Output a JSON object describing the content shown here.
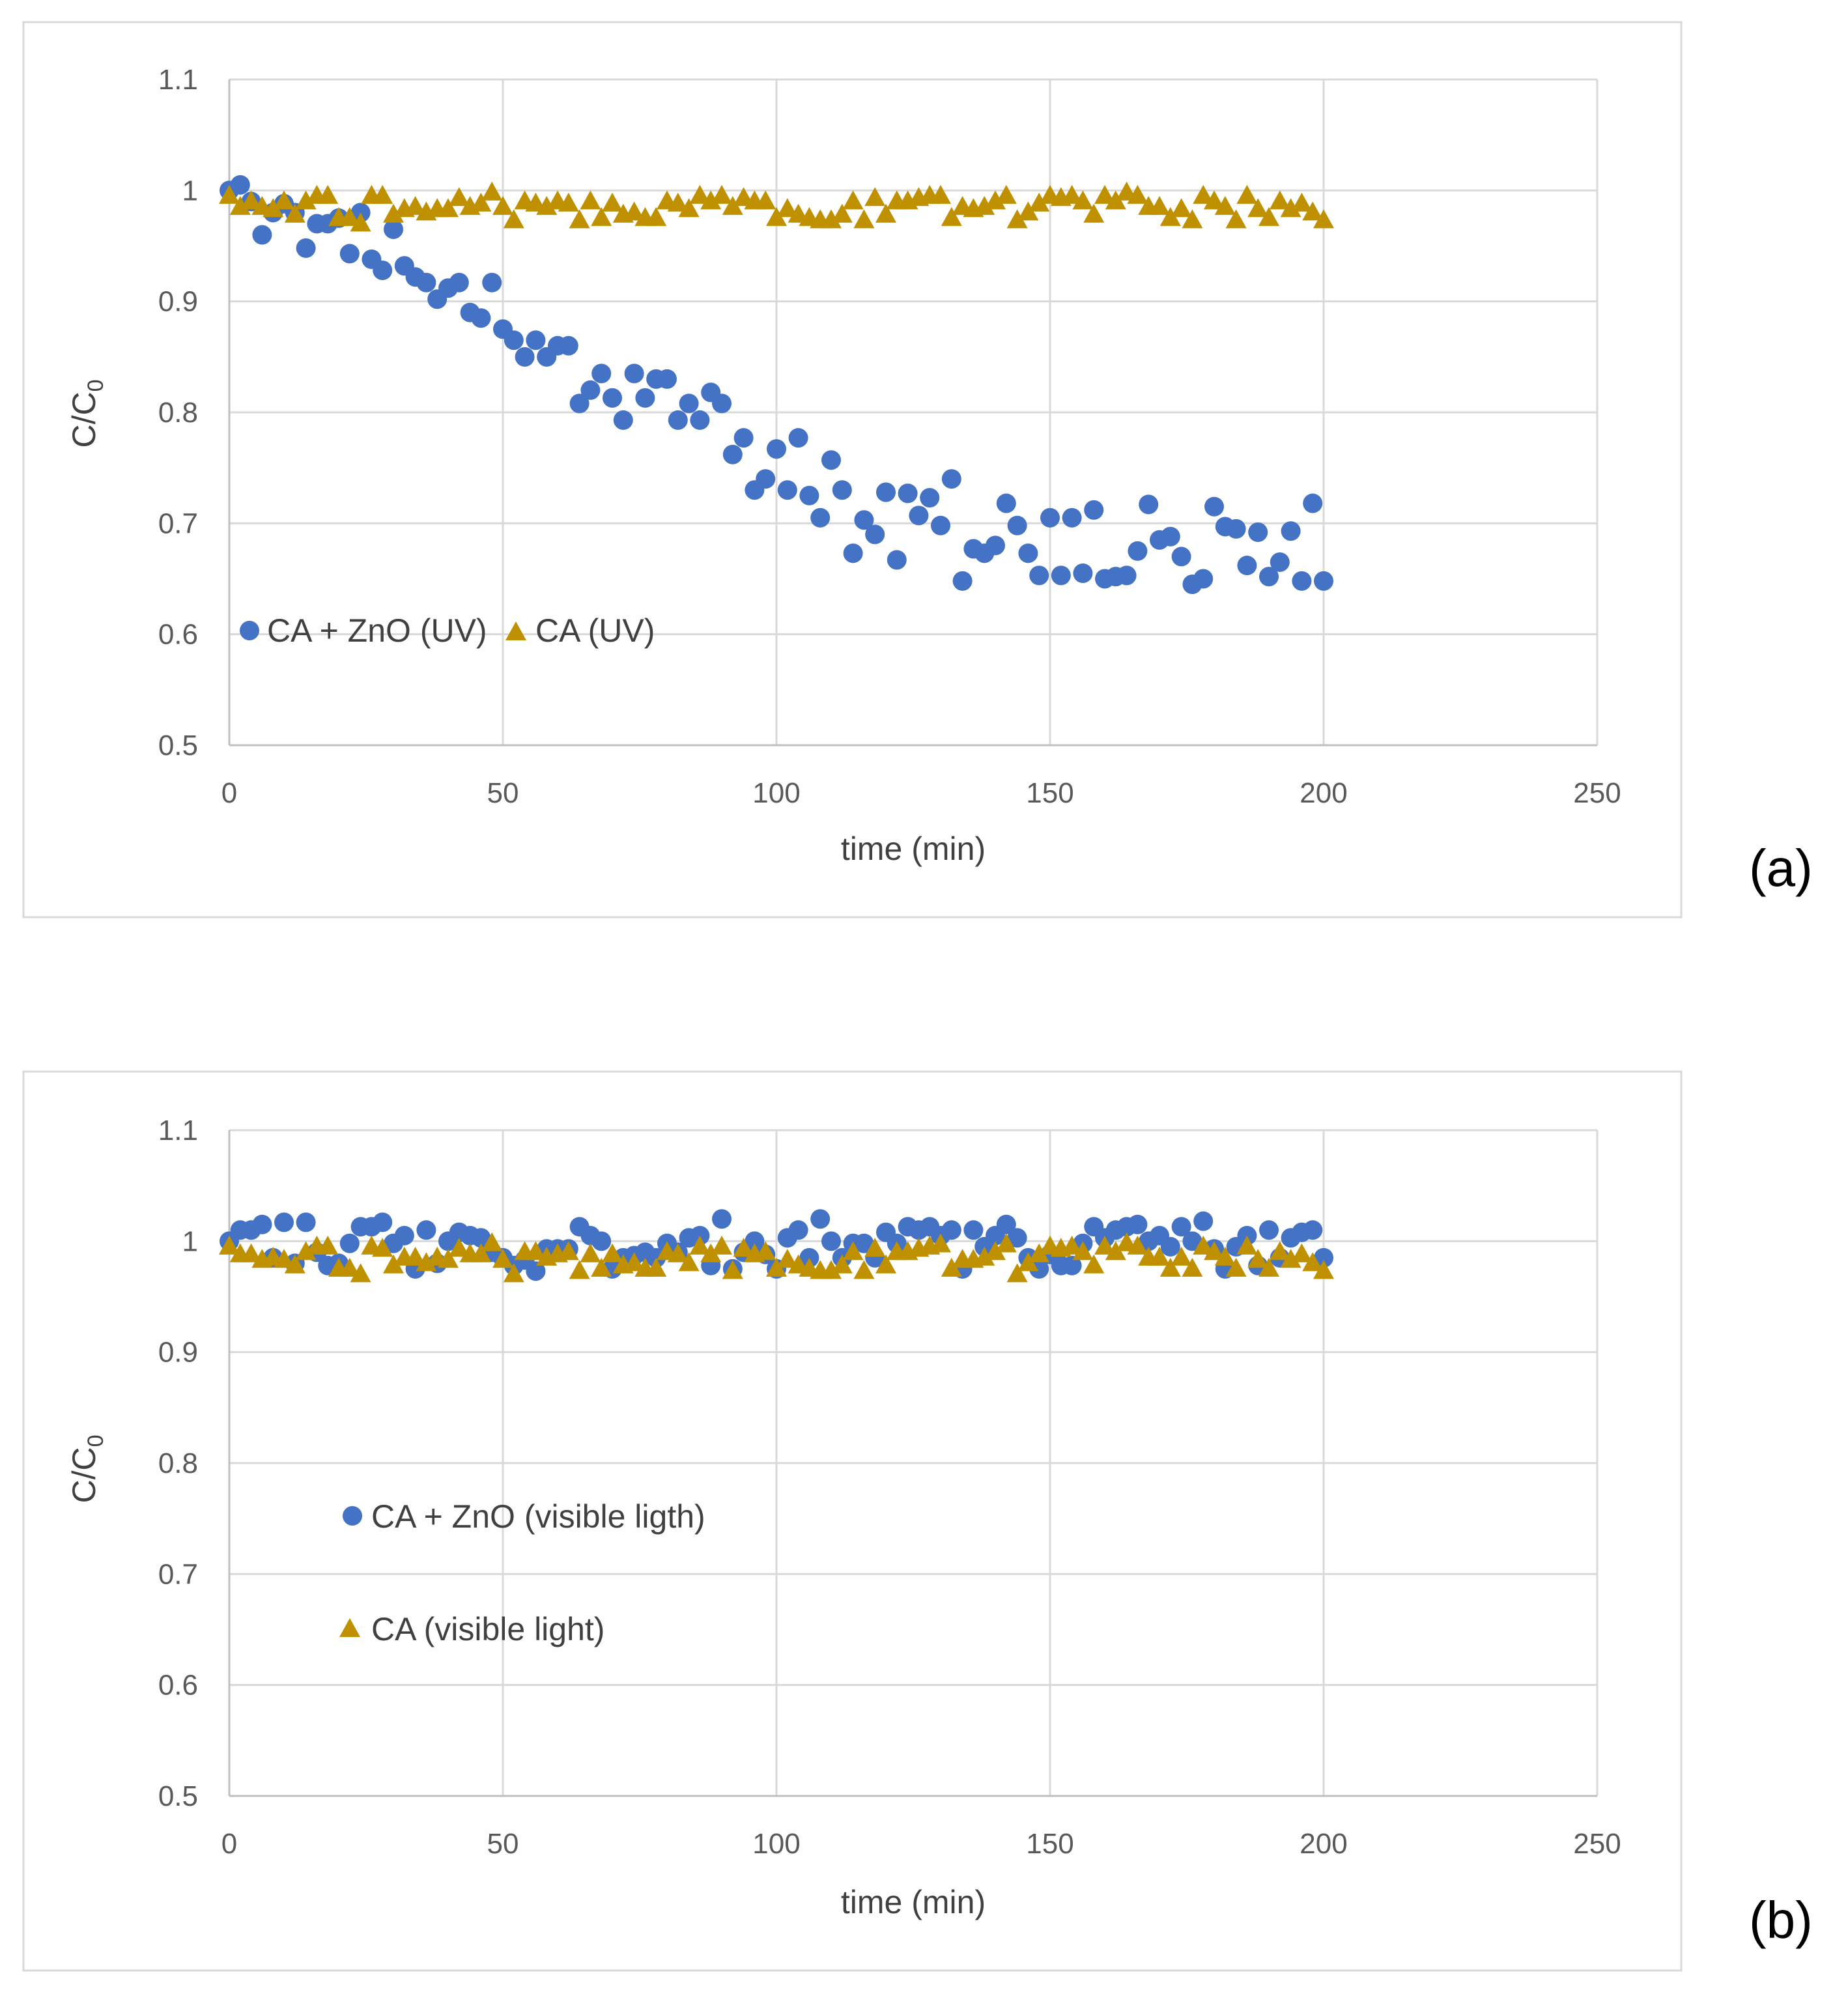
{
  "chart_data": [
    {
      "type": "scatter",
      "panel_label": "(a)",
      "xlabel": "time (min)",
      "ylabel": "C/C",
      "ylabel_sub": "0",
      "xlim": [
        0,
        250
      ],
      "ylim": [
        0.5,
        1.1
      ],
      "xticks": [
        0,
        50,
        100,
        150,
        200,
        250
      ],
      "yticks": [
        0.5,
        0.6,
        0.7,
        0.8,
        0.9,
        1,
        1.1
      ],
      "grid": true,
      "legend_position": "left, inline",
      "series": [
        {
          "name": "CA + ZnO (UV)",
          "marker": "circle",
          "color": "#4472c4",
          "x": [
            0,
            2,
            4,
            6,
            8,
            10,
            12,
            14,
            16,
            18,
            20,
            22,
            24,
            26,
            28,
            30,
            32,
            34,
            36,
            38,
            40,
            42,
            44,
            46,
            48,
            50,
            52,
            54,
            56,
            58,
            60,
            62,
            64,
            66,
            68,
            70,
            72,
            74,
            76,
            78,
            80,
            82,
            84,
            86,
            88,
            90,
            92,
            94,
            96,
            98,
            100,
            102,
            104,
            106,
            108,
            110,
            112,
            114,
            116,
            118,
            120,
            122,
            124,
            126,
            128,
            130,
            132,
            134,
            136,
            138,
            140,
            142,
            144,
            146,
            148,
            150,
            152,
            154,
            156,
            158,
            160,
            162,
            164,
            166,
            168,
            170,
            172,
            174,
            176,
            178,
            180,
            182,
            184,
            186,
            188,
            190,
            192,
            194,
            196,
            198,
            200
          ],
          "y": [
            1.0,
            1.005,
            0.99,
            0.96,
            0.98,
            0.988,
            0.98,
            0.948,
            0.97,
            0.97,
            0.975,
            0.943,
            0.98,
            0.938,
            0.928,
            0.965,
            0.932,
            0.922,
            0.917,
            0.902,
            0.912,
            0.917,
            0.89,
            0.885,
            0.917,
            0.875,
            0.865,
            0.85,
            0.865,
            0.85,
            0.86,
            0.86,
            0.808,
            0.82,
            0.835,
            0.813,
            0.793,
            0.835,
            0.813,
            0.83,
            0.83,
            0.793,
            0.808,
            0.793,
            0.818,
            0.808,
            0.762,
            0.777,
            0.73,
            0.74,
            0.767,
            0.73,
            0.777,
            0.725,
            0.705,
            0.757,
            0.73,
            0.673,
            0.703,
            0.69,
            0.728,
            0.667,
            0.727,
            0.707,
            0.723,
            0.698,
            0.74,
            0.648,
            0.677,
            0.673,
            0.68,
            0.718,
            0.698,
            0.673,
            0.653,
            0.705,
            0.653,
            0.705,
            0.655,
            0.712,
            0.65,
            0.652,
            0.653,
            0.675,
            0.717,
            0.685,
            0.688,
            0.67,
            0.645,
            0.65,
            0.715,
            0.697,
            0.695,
            0.662,
            0.692,
            0.652,
            0.665,
            0.693,
            0.648,
            0.718,
            0.648
          ]
        },
        {
          "name": "CA (UV)",
          "marker": "triangle",
          "color": "#bf9000",
          "x": [
            0,
            2,
            4,
            6,
            8,
            10,
            12,
            14,
            16,
            18,
            20,
            22,
            24,
            26,
            28,
            30,
            32,
            34,
            36,
            38,
            40,
            42,
            44,
            46,
            48,
            50,
            52,
            54,
            56,
            58,
            60,
            62,
            64,
            66,
            68,
            70,
            72,
            74,
            76,
            78,
            80,
            82,
            84,
            86,
            88,
            90,
            92,
            94,
            96,
            98,
            100,
            102,
            104,
            106,
            108,
            110,
            112,
            114,
            116,
            118,
            120,
            122,
            124,
            126,
            128,
            130,
            132,
            134,
            136,
            138,
            140,
            142,
            144,
            146,
            148,
            150,
            152,
            154,
            156,
            158,
            160,
            162,
            164,
            166,
            168,
            170,
            172,
            174,
            176,
            178,
            180,
            182,
            184,
            186,
            188,
            190,
            192,
            194,
            196,
            198,
            200
          ],
          "y": [
            0.995,
            0.985,
            0.99,
            0.985,
            0.983,
            0.99,
            0.978,
            0.99,
            0.995,
            0.995,
            0.975,
            0.975,
            0.97,
            0.995,
            0.995,
            0.978,
            0.983,
            0.985,
            0.98,
            0.983,
            0.983,
            0.993,
            0.985,
            0.988,
            0.998,
            0.985,
            0.973,
            0.99,
            0.988,
            0.985,
            0.99,
            0.988,
            0.973,
            0.99,
            0.975,
            0.988,
            0.978,
            0.98,
            0.975,
            0.975,
            0.99,
            0.988,
            0.983,
            0.995,
            0.99,
            0.995,
            0.985,
            0.993,
            0.99,
            0.99,
            0.975,
            0.983,
            0.978,
            0.975,
            0.973,
            0.973,
            0.978,
            0.99,
            0.973,
            0.993,
            0.978,
            0.99,
            0.99,
            0.993,
            0.995,
            0.995,
            0.975,
            0.985,
            0.983,
            0.985,
            0.99,
            0.995,
            0.973,
            0.98,
            0.988,
            0.995,
            0.993,
            0.995,
            0.99,
            0.978,
            0.995,
            0.99,
            0.998,
            0.995,
            0.985,
            0.985,
            0.975,
            0.983,
            0.973,
            0.995,
            0.99,
            0.985,
            0.973,
            0.995,
            0.983,
            0.975,
            0.99,
            0.983,
            0.988,
            0.98,
            0.973
          ]
        }
      ]
    },
    {
      "type": "scatter",
      "panel_label": "(b)",
      "xlabel": "time (min)",
      "ylabel": "C/C",
      "ylabel_sub": "0",
      "xlim": [
        0,
        250
      ],
      "ylim": [
        0.5,
        1.1
      ],
      "xticks": [
        0,
        50,
        100,
        150,
        200,
        250
      ],
      "yticks": [
        0.5,
        0.6,
        0.7,
        0.8,
        0.9,
        1,
        1.1
      ],
      "grid": true,
      "legend_position": "left, stacked",
      "series": [
        {
          "name": "CA + ZnO (visible ligth)",
          "marker": "circle",
          "color": "#4472c4",
          "x": [
            0,
            2,
            4,
            6,
            8,
            10,
            12,
            14,
            16,
            18,
            20,
            22,
            24,
            26,
            28,
            30,
            32,
            34,
            36,
            38,
            40,
            42,
            44,
            46,
            48,
            50,
            52,
            54,
            56,
            58,
            60,
            62,
            64,
            66,
            68,
            70,
            72,
            74,
            76,
            78,
            80,
            82,
            84,
            86,
            88,
            90,
            92,
            94,
            96,
            98,
            100,
            102,
            104,
            106,
            108,
            110,
            112,
            114,
            116,
            118,
            120,
            122,
            124,
            126,
            128,
            130,
            132,
            134,
            136,
            138,
            140,
            142,
            144,
            146,
            148,
            150,
            152,
            154,
            156,
            158,
            160,
            162,
            164,
            166,
            168,
            170,
            172,
            174,
            176,
            178,
            180,
            182,
            184,
            186,
            188,
            190,
            192,
            194,
            196,
            198,
            200
          ],
          "y": [
            1.0,
            1.01,
            1.01,
            1.015,
            0.985,
            1.017,
            0.98,
            1.017,
            0.99,
            0.978,
            0.98,
            0.998,
            1.013,
            1.013,
            1.017,
            0.998,
            1.005,
            0.975,
            1.01,
            0.98,
            1.0,
            1.008,
            1.005,
            1.003,
            0.99,
            0.985,
            0.978,
            0.983,
            0.973,
            0.993,
            0.993,
            0.993,
            1.013,
            1.005,
            1.0,
            0.975,
            0.985,
            0.987,
            0.99,
            0.985,
            0.998,
            0.99,
            1.003,
            1.005,
            0.978,
            1.02,
            0.975,
            0.99,
            1.0,
            0.988,
            0.975,
            1.003,
            1.01,
            0.985,
            1.02,
            1.0,
            0.985,
            0.998,
            0.998,
            0.985,
            1.008,
            0.998,
            1.013,
            1.01,
            1.013,
            1.005,
            1.01,
            0.975,
            1.01,
            0.995,
            1.005,
            1.015,
            1.003,
            0.985,
            0.975,
            0.988,
            0.978,
            0.978,
            0.998,
            1.013,
            1.003,
            1.01,
            1.013,
            1.015,
            1.0,
            1.005,
            0.995,
            1.013,
            1.0,
            1.018,
            0.993,
            0.975,
            0.995,
            1.005,
            0.978,
            1.01,
            0.985,
            1.003,
            1.008,
            1.01,
            0.985
          ]
        },
        {
          "name": "CA (visible light)",
          "marker": "triangle",
          "color": "#bf9000",
          "x": [
            0,
            2,
            4,
            6,
            8,
            10,
            12,
            14,
            16,
            18,
            20,
            22,
            24,
            26,
            28,
            30,
            32,
            34,
            36,
            38,
            40,
            42,
            44,
            46,
            48,
            50,
            52,
            54,
            56,
            58,
            60,
            62,
            64,
            66,
            68,
            70,
            72,
            74,
            76,
            78,
            80,
            82,
            84,
            86,
            88,
            90,
            92,
            94,
            96,
            98,
            100,
            102,
            104,
            106,
            108,
            110,
            112,
            114,
            116,
            118,
            120,
            122,
            124,
            126,
            128,
            130,
            132,
            134,
            136,
            138,
            140,
            142,
            144,
            146,
            148,
            150,
            152,
            154,
            156,
            158,
            160,
            162,
            164,
            166,
            168,
            170,
            172,
            174,
            176,
            178,
            180,
            182,
            184,
            186,
            188,
            190,
            192,
            194,
            196,
            198,
            200
          ],
          "y": [
            0.995,
            0.988,
            0.988,
            0.983,
            0.985,
            0.983,
            0.978,
            0.99,
            0.995,
            0.995,
            0.975,
            0.975,
            0.97,
            0.995,
            0.993,
            0.978,
            0.985,
            0.985,
            0.98,
            0.985,
            0.983,
            0.993,
            0.988,
            0.988,
            0.998,
            0.983,
            0.97,
            0.99,
            0.99,
            0.985,
            0.988,
            0.99,
            0.973,
            0.988,
            0.975,
            0.988,
            0.978,
            0.98,
            0.975,
            0.975,
            0.99,
            0.988,
            0.98,
            0.995,
            0.988,
            0.995,
            0.973,
            0.993,
            0.988,
            0.99,
            0.975,
            0.983,
            0.978,
            0.975,
            0.973,
            0.973,
            0.978,
            0.99,
            0.973,
            0.993,
            0.978,
            0.99,
            0.99,
            0.993,
            0.995,
            0.997,
            0.975,
            0.983,
            0.983,
            0.985,
            0.99,
            0.997,
            0.97,
            0.98,
            0.988,
            0.995,
            0.993,
            0.995,
            0.99,
            0.978,
            0.995,
            0.99,
            0.998,
            0.995,
            0.985,
            0.985,
            0.975,
            0.985,
            0.975,
            0.995,
            0.99,
            0.985,
            0.975,
            0.995,
            0.983,
            0.975,
            0.99,
            0.983,
            0.988,
            0.98,
            0.973
          ]
        }
      ]
    }
  ]
}
